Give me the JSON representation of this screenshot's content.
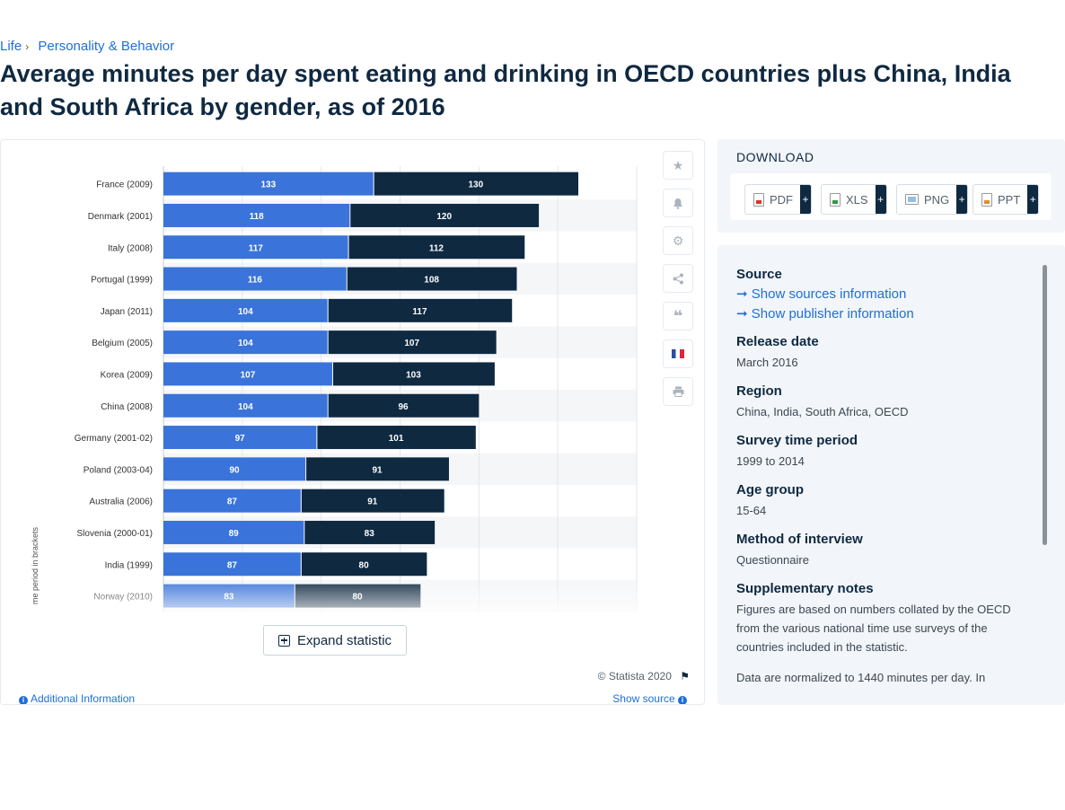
{
  "breadcrumb": {
    "items": [
      "Life",
      "Personality & Behavior"
    ],
    "separator": "›"
  },
  "page_title": "Average minutes per day spent eating and drinking in OECD countries plus China, India and South Africa by gender, as of 2016",
  "chart_data": {
    "type": "bar",
    "orientation": "horizontal",
    "stacked": true,
    "categories": [
      "France (2009)",
      "Denmark (2001)",
      "Italy (2008)",
      "Portugal (1999)",
      "Japan (2011)",
      "Belgium (2005)",
      "Korea (2009)",
      "China (2008)",
      "Germany (2001-02)",
      "Poland (2003-04)",
      "Australia (2006)",
      "Slovenia (2000-01)",
      "India (1999)",
      "Norway (2010)"
    ],
    "series": [
      {
        "values": [
          133,
          118,
          117,
          116,
          104,
          104,
          107,
          104,
          97,
          90,
          87,
          89,
          87,
          83
        ],
        "color": "#3a73d9"
      },
      {
        "values": [
          130,
          120,
          112,
          108,
          117,
          107,
          103,
          96,
          101,
          91,
          91,
          83,
          80,
          80
        ],
        "color": "#0f2941"
      }
    ],
    "ylabel": "me period in brackets",
    "xlim": [
      0,
      300
    ],
    "grid": true
  },
  "toolbar": {
    "icons": [
      "star-icon",
      "bell-icon",
      "gear-icon",
      "share-icon",
      "quote-icon",
      "french-flag-icon",
      "print-icon"
    ]
  },
  "expand_label": "Expand statistic",
  "copyright": "© Statista 2020",
  "additional_info_label": "Additional Information",
  "show_source_label": "Show source",
  "download": {
    "title": "DOWNLOAD",
    "buttons": [
      {
        "label": "PDF",
        "plus": "+"
      },
      {
        "label": "XLS",
        "plus": "+"
      },
      {
        "label": "PNG",
        "plus": "+"
      },
      {
        "label": "PPT",
        "plus": "+"
      }
    ]
  },
  "info": {
    "source_label": "Source",
    "show_sources": "Show sources information",
    "show_publisher": "Show publisher information",
    "release_date_label": "Release date",
    "release_date": "March 2016",
    "region_label": "Region",
    "region": "China, India, South Africa, OECD",
    "survey_period_label": "Survey time period",
    "survey_period": "1999 to 2014",
    "age_group_label": "Age group",
    "age_group": "15-64",
    "method_label": "Method of interview",
    "method": "Questionnaire",
    "supplementary_label": "Supplementary notes",
    "supplementary_1": "Figures are based on numbers collated by the OECD from the various national time use surveys of the countries included in the statistic.",
    "supplementary_2": "Data are normalized to 1440 minutes per day. In"
  }
}
